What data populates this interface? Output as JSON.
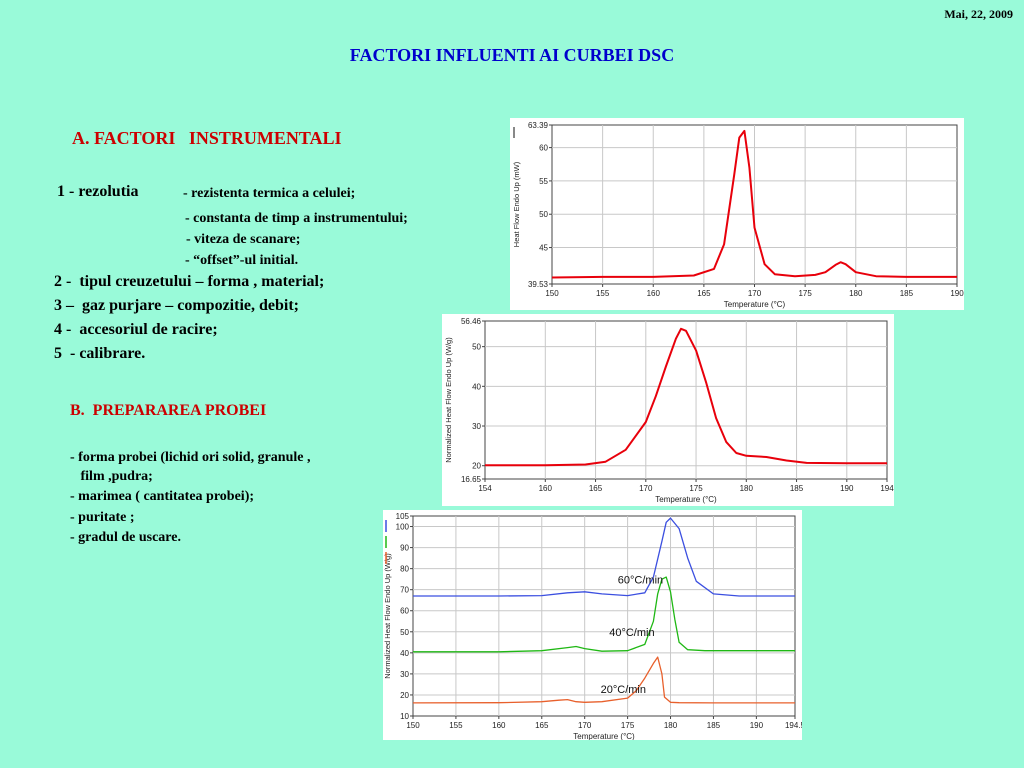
{
  "header": {
    "date": "Mai, 22, 2009",
    "title": "FACTORI INFLUENTI AI CURBEI DSC"
  },
  "sectionA": {
    "heading": "A. FACTORI   INSTRUMENTALI",
    "item1_label": "1 - rezolutia",
    "item1_subs": [
      "- rezistenta termica a celulei;",
      "- constanta de timp a instrumentului;",
      "- viteza de scanare;",
      "- “offset”-ul initial."
    ],
    "items": [
      "2 -  tipul creuzetului – forma , material;",
      "3 –  gaz purjare – compozitie, debit;",
      "4 -  accesoriul de racire;",
      "5  - calibrare."
    ]
  },
  "sectionB": {
    "heading": "B.  PREPARAREA PROBEI",
    "items": [
      "- forma probei (lichid ori solid, granule ,",
      "   film ,pudra;",
      "- marimea ( cantitatea probei);",
      "- puritate ;",
      "- gradul de uscare."
    ]
  },
  "chart_data": [
    {
      "type": "line",
      "xlabel": "Temperature (°C)",
      "ylabel": "Heat Flow Endo Up (mW)",
      "xlim": [
        150,
        190
      ],
      "ylim": [
        39.53,
        63.39
      ],
      "xticks": [
        "150",
        "155",
        "160",
        "165",
        "170",
        "175",
        "180",
        "185",
        "190"
      ],
      "yticks": [
        {
          "value": 39.53,
          "label": "39.53"
        },
        {
          "value": 45,
          "label": "45"
        },
        {
          "value": 50,
          "label": "50"
        },
        {
          "value": 55,
          "label": "55"
        },
        {
          "value": 60,
          "label": "60"
        },
        {
          "value": 63.39,
          "label": "63.39"
        }
      ],
      "grid": true,
      "series": [
        {
          "color": "#E8000B",
          "x": [
            150,
            155,
            160,
            164,
            166,
            167,
            168,
            168.5,
            169,
            169.5,
            170,
            171,
            172,
            174,
            176,
            177,
            178,
            178.5,
            179,
            180,
            182,
            185,
            190
          ],
          "y": [
            40.5,
            40.6,
            40.6,
            40.8,
            41.8,
            45.5,
            56,
            61.5,
            62.5,
            57,
            48,
            42.5,
            41.0,
            40.7,
            40.9,
            41.3,
            42.4,
            42.8,
            42.5,
            41.3,
            40.7,
            40.6,
            40.6
          ]
        }
      ]
    },
    {
      "type": "line",
      "xlabel": "Temperature (°C)",
      "ylabel": "Normalized Heat Flow Endo Up (W/g)",
      "xlim": [
        154,
        194
      ],
      "ylim": [
        16.65,
        56.46
      ],
      "xticks": [
        "154",
        "160",
        "165",
        "170",
        "175",
        "180",
        "185",
        "190",
        "194"
      ],
      "yticks": [
        {
          "value": 16.65,
          "label": "16.65"
        },
        {
          "value": 20,
          "label": "20"
        },
        {
          "value": 30,
          "label": "30"
        },
        {
          "value": 40,
          "label": "40"
        },
        {
          "value": 50,
          "label": "50"
        },
        {
          "value": 56.46,
          "label": "56.46"
        }
      ],
      "grid": true,
      "series": [
        {
          "color": "#E8000B",
          "x": [
            154,
            160,
            164,
            166,
            168,
            170,
            171,
            172,
            173,
            173.5,
            174,
            175,
            176,
            177,
            178,
            179,
            180,
            182,
            184,
            186,
            190,
            194
          ],
          "y": [
            20.1,
            20.1,
            20.3,
            21,
            24,
            31,
            37.5,
            45,
            52,
            54.5,
            54,
            49,
            41,
            32,
            26,
            23.2,
            22.5,
            22.2,
            21.3,
            20.7,
            20.6,
            20.6
          ]
        }
      ]
    },
    {
      "type": "line",
      "xlabel": "Temperature (°C)",
      "ylabel": "Normalized Heat Flow Endo Up (W/g)",
      "xlim": [
        150,
        194.5
      ],
      "ylim": [
        10,
        105
      ],
      "xticks": [
        "150",
        "155",
        "160",
        "165",
        "170",
        "175",
        "180",
        "185",
        "190",
        "194.5"
      ],
      "yticks": [
        {
          "value": 10,
          "label": "10"
        },
        {
          "value": 20,
          "label": "20"
        },
        {
          "value": 30,
          "label": "30"
        },
        {
          "value": 40,
          "label": "40"
        },
        {
          "value": 50,
          "label": "50"
        },
        {
          "value": 60,
          "label": "60"
        },
        {
          "value": 70,
          "label": "70"
        },
        {
          "value": 80,
          "label": "80"
        },
        {
          "value": 90,
          "label": "90"
        },
        {
          "value": 100,
          "label": "100"
        },
        {
          "value": 105,
          "label": "105"
        }
      ],
      "grid": true,
      "annotations": [
        {
          "text": "60°C/min",
          "x": 176.5,
          "y": 73
        },
        {
          "text": "40°C/min",
          "x": 175.5,
          "y": 48
        },
        {
          "text": "20°C/min",
          "x": 174.5,
          "y": 21
        }
      ],
      "series": [
        {
          "name": "60°C/min",
          "color": "#3B4FE0",
          "x": [
            150,
            160,
            165,
            168,
            170,
            172,
            175,
            177,
            178,
            179,
            179.5,
            180,
            181,
            182,
            183,
            185,
            188,
            190,
            194.5
          ],
          "y": [
            67,
            67,
            67.2,
            68.5,
            69,
            68,
            67.2,
            68.5,
            76,
            93,
            102,
            104,
            99,
            85,
            74,
            68,
            67,
            67,
            67
          ]
        },
        {
          "name": "40°C/min",
          "color": "#1FB814",
          "x": [
            150,
            160,
            165,
            168,
            169,
            170,
            172,
            175,
            177,
            178,
            178.5,
            179,
            179.5,
            180,
            180.5,
            181,
            182,
            184,
            190,
            194.5
          ],
          "y": [
            40.5,
            40.5,
            41,
            42.5,
            43,
            42,
            40.8,
            41,
            44,
            55,
            68,
            75,
            76,
            69,
            56,
            45,
            41.5,
            41,
            41,
            41
          ]
        },
        {
          "name": "20°C/min",
          "color": "#E8602C",
          "x": [
            150,
            160,
            165,
            167,
            168,
            169,
            170,
            172,
            175,
            176,
            177,
            178,
            178.5,
            179,
            179.3,
            180,
            181,
            185,
            190,
            194.5
          ],
          "y": [
            16.2,
            16.3,
            16.8,
            17.5,
            17.8,
            16.8,
            16.5,
            16.8,
            18.5,
            22,
            28,
            35,
            38,
            30,
            19,
            16.5,
            16.3,
            16.2,
            16.2,
            16.2
          ]
        }
      ]
    }
  ]
}
